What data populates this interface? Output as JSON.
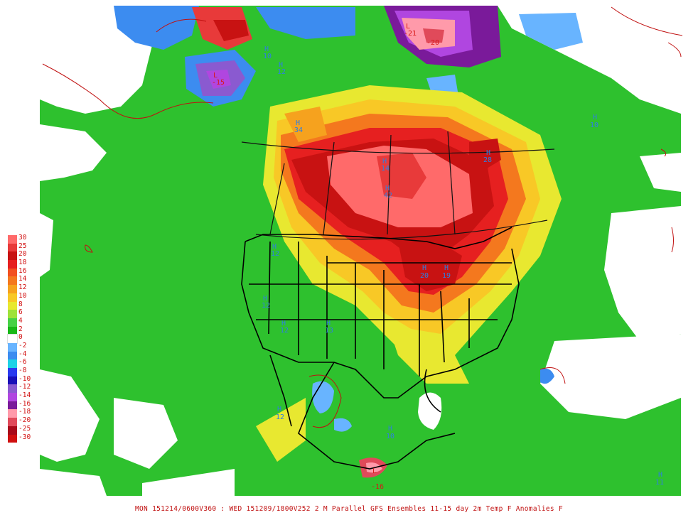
{
  "legend": [
    {
      "label": "30",
      "color": "#ff6a6a"
    },
    {
      "label": "25",
      "color": "#e83a3a"
    },
    {
      "label": "20",
      "color": "#c81212"
    },
    {
      "label": "18",
      "color": "#e62020"
    },
    {
      "label": "16",
      "color": "#f25020"
    },
    {
      "label": "14",
      "color": "#f4781e"
    },
    {
      "label": "12",
      "color": "#f6a21e"
    },
    {
      "label": "10",
      "color": "#f8c826"
    },
    {
      "label": "8",
      "color": "#e8e830"
    },
    {
      "label": "6",
      "color": "#9ee23a"
    },
    {
      "label": "4",
      "color": "#46d246"
    },
    {
      "label": "2",
      "color": "#18b818"
    },
    {
      "label": "0",
      "color": "#ffffff"
    },
    {
      "label": "-2",
      "color": "#68b4ff"
    },
    {
      "label": "-4",
      "color": "#3c8cf0"
    },
    {
      "label": "-6",
      "color": "#1ed2e6"
    },
    {
      "label": "-8",
      "color": "#2a3af0"
    },
    {
      "label": "-10",
      "color": "#1a10b8"
    },
    {
      "label": "-12",
      "color": "#8a5ad0"
    },
    {
      "label": "-14",
      "color": "#b046e0"
    },
    {
      "label": "-16",
      "color": "#7a1a9a"
    },
    {
      "label": "-18",
      "color": "#ff9aaa"
    },
    {
      "label": "-20",
      "color": "#e04a5a"
    },
    {
      "label": "-25",
      "color": "#a80a1a"
    },
    {
      "label": "-30",
      "color": "#d01010"
    }
  ],
  "caption": "MON 151214/0600V360 : WED 151209/1800V252  2 M Parallel GFS Ensembles 11-15 day 2m Temp F Anomalies F",
  "highs": [
    {
      "label": "H",
      "value": "10",
      "id": "h-alaska-n"
    },
    {
      "label": "H",
      "value": "12",
      "id": "h-yukon"
    },
    {
      "label": "H",
      "value": "34",
      "id": "h-bc-north"
    },
    {
      "label": "H",
      "value": "14",
      "id": "h-sask"
    },
    {
      "label": "H",
      "value": "42",
      "id": "h-manitoba"
    },
    {
      "label": "H",
      "value": "28",
      "id": "h-quebec"
    },
    {
      "label": "H",
      "value": "10",
      "id": "h-greenland-s"
    },
    {
      "label": "H",
      "value": "20",
      "id": "h-wisconsin"
    },
    {
      "label": "H",
      "value": "19",
      "id": "h-michigan"
    },
    {
      "label": "H",
      "value": "12",
      "id": "h-washington"
    },
    {
      "label": "H",
      "value": "12",
      "id": "h-nevada"
    },
    {
      "label": "H",
      "value": "12",
      "id": "h-utah"
    },
    {
      "label": "H",
      "value": "13",
      "id": "h-kansas"
    },
    {
      "label": "H",
      "value": "12",
      "id": "h-mexico-w"
    },
    {
      "label": "H",
      "value": "10",
      "id": "h-mexico-e"
    },
    {
      "label": "H",
      "value": "11",
      "id": "h-caribbean"
    }
  ],
  "lows": [
    {
      "label": "L",
      "value": "-21",
      "id": "l-greenland"
    },
    {
      "label": "L",
      "value": "-20",
      "id": "l-greenland-2"
    },
    {
      "label": "L",
      "value": "-15",
      "id": "l-alaska"
    },
    {
      "label": "L",
      "value": "-16",
      "id": "l-mexico-s"
    }
  ]
}
